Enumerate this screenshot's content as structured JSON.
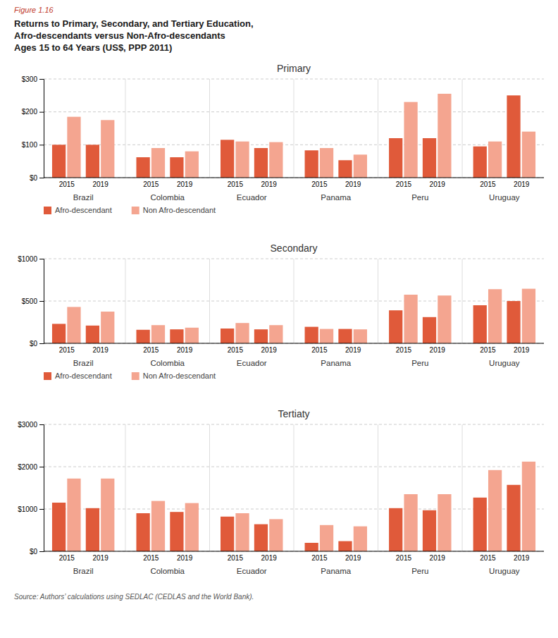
{
  "title": [
    "Returns to Primary, Secondary, and Tertiary Education,",
    "Afro-descendants versus Non-Afro-descendants",
    "Ages 15 to 64 Years (US$, PPP 2011)"
  ],
  "annotations": [
    "Figure 1.16",
    "Source: Authors’ calculations using SEDLAC (CEDLAS and the World Bank)."
  ],
  "chart_data": [
    {
      "type": "bar",
      "title": "Primary",
      "categories": [
        "2015",
        "2019",
        "2015",
        "2019",
        "2015",
        "2019",
        "2015",
        "2019",
        "2015",
        "2019",
        "2015",
        "2019"
      ],
      "category_groups": [
        "Brazil",
        "Colombia",
        "Ecuador",
        "Panama",
        "Peru",
        "Uruguay"
      ],
      "series": [
        {
          "name": "Afro-descendant",
          "color": "#E05A3A",
          "values": [
            100,
            100,
            62,
            62,
            115,
            90,
            83,
            53,
            120,
            120,
            95,
            250
          ]
        },
        {
          "name": "Non Afro-descendant",
          "color": "#F4A590",
          "values": [
            185,
            175,
            90,
            80,
            110,
            108,
            90,
            70,
            230,
            255,
            110,
            140
          ]
        }
      ],
      "ylim": [
        0,
        300
      ],
      "yticks": [
        {
          "value": 0,
          "label": "$0"
        },
        {
          "value": 100,
          "label": "$100"
        },
        {
          "value": 200,
          "label": "$200"
        },
        {
          "value": 300,
          "label": "$300"
        }
      ],
      "grid": true,
      "legend": "bottom"
    },
    {
      "type": "bar",
      "title": "Secondary",
      "categories": [
        "2015",
        "2019",
        "2015",
        "2019",
        "2015",
        "2019",
        "2015",
        "2019",
        "2015",
        "2019",
        "2015",
        "2019"
      ],
      "category_groups": [
        "Brazil",
        "Colombia",
        "Ecuador",
        "Panama",
        "Peru",
        "Uruguay"
      ],
      "series": [
        {
          "name": "Afro-descendant",
          "color": "#E05A3A",
          "values": [
            230,
            210,
            160,
            165,
            175,
            165,
            195,
            170,
            390,
            310,
            450,
            500
          ]
        },
        {
          "name": "Non Afro-descendant",
          "color": "#F4A590",
          "values": [
            430,
            375,
            215,
            185,
            240,
            215,
            170,
            165,
            575,
            565,
            640,
            645
          ]
        }
      ],
      "ylim": [
        0,
        1000
      ],
      "yticks": [
        {
          "value": 0,
          "label": "$0"
        },
        {
          "value": 500,
          "label": "$500"
        },
        {
          "value": 1000,
          "label": "$1000"
        }
      ],
      "grid": true,
      "legend": "bottom"
    },
    {
      "type": "bar",
      "title": "Tertiaty",
      "categories": [
        "2015",
        "2019",
        "2015",
        "2019",
        "2015",
        "2019",
        "2015",
        "2019",
        "2015",
        "2019",
        "2015",
        "2019"
      ],
      "category_groups": [
        "Brazil",
        "Colombia",
        "Ecuador",
        "Panama",
        "Peru",
        "Uruguay"
      ],
      "series": [
        {
          "name": "Afro-descendant",
          "color": "#E05A3A",
          "values": [
            1150,
            1020,
            900,
            930,
            820,
            640,
            200,
            240,
            1020,
            970,
            1270,
            1570
          ]
        },
        {
          "name": "Non Afro-descendant",
          "color": "#F4A590",
          "values": [
            1720,
            1720,
            1190,
            1140,
            900,
            760,
            620,
            590,
            1350,
            1350,
            1920,
            2120
          ]
        }
      ],
      "ylim": [
        0,
        3000
      ],
      "yticks": [
        {
          "value": 0,
          "label": "$0"
        },
        {
          "value": 1000,
          "label": "$1000"
        },
        {
          "value": 2000,
          "label": "$2000"
        },
        {
          "value": 3000,
          "label": "$3000"
        }
      ],
      "grid": true
    }
  ]
}
